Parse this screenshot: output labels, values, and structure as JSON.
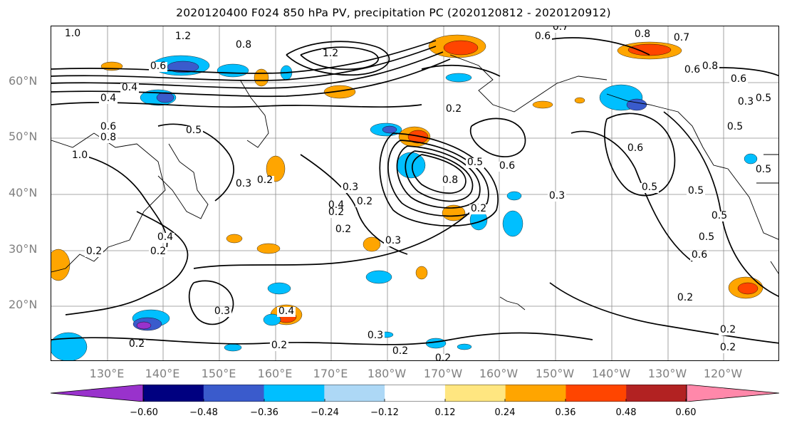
{
  "title": "2020120400 F024 850 hPa PV, precipitation PC (2020120812 - 2020120912)",
  "lat_labels": [
    "60°N",
    "50°N",
    "40°N",
    "30°N",
    "20°N"
  ],
  "lon_labels": [
    "130°E",
    "140°E",
    "150°E",
    "160°E",
    "170°E",
    "180°W",
    "170°W",
    "160°W",
    "150°W",
    "140°W",
    "130°W",
    "120°W"
  ],
  "colorbar": {
    "ticks": [
      "−0.60",
      "−0.48",
      "−0.36",
      "−0.24",
      "−0.12",
      "0.12",
      "0.24",
      "0.36",
      "0.48",
      "0.60"
    ],
    "colors": [
      "#9932cc",
      "#000080",
      "#3a5bcc",
      "#00bfff",
      "#add8f6",
      "#ffffff",
      "#ffe680",
      "#ffa500",
      "#ff4500",
      "#b22222",
      "#ff88aa"
    ]
  },
  "contour_labels": [
    "1.0",
    "1.2",
    "1.2",
    "0.8",
    "0.6",
    "0.4",
    "0.4",
    "0.6",
    "0.8",
    "1.0",
    "0.5",
    "0.3",
    "0.2",
    "0.4",
    "0.2",
    "0.2",
    "0.3",
    "0.4",
    "0.2",
    "0.2",
    "0.2",
    "0.3",
    "0.2",
    "0.4",
    "0.2",
    "0.2",
    "0.3",
    "0.5",
    "0.6",
    "0.8",
    "0.2",
    "0.3",
    "0.5",
    "0.6",
    "0.5",
    "0.5",
    "0.7",
    "0.6",
    "0.8",
    "0.8",
    "0.6",
    "0.5",
    "0.3",
    "0.5",
    "0.5",
    "0.5",
    "0.6",
    "0.2",
    "0.2",
    "0.2",
    "0.3",
    "0.2",
    "0.2",
    "0.7",
    "0.6"
  ]
}
